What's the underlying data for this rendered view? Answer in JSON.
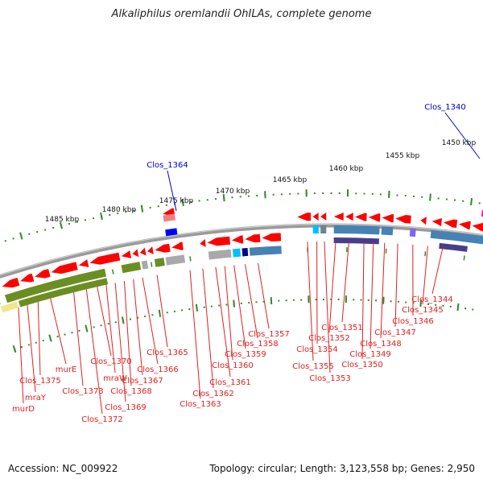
{
  "title": "Alkaliphilus oremlandii OhILAs, complete genome",
  "footer": {
    "accession": "Accession: NC_009922",
    "stats": "Topology: circular; Length: 3,123,558 bp; Genes: 2,950"
  },
  "ruler": [
    {
      "label": "1485 kbp"
    },
    {
      "label": "1480 kbp"
    },
    {
      "label": "1475 kbp"
    },
    {
      "label": "1470 kbp"
    },
    {
      "label": "1465 kbp"
    },
    {
      "label": "1460 kbp"
    },
    {
      "label": "1455 kbp"
    },
    {
      "label": "1450 kbp"
    }
  ],
  "highlighted_genes": [
    {
      "label": "Clos_1364"
    },
    {
      "label": "Clos_1340"
    }
  ],
  "gene_labels": [
    {
      "label": "murD"
    },
    {
      "label": "mraY"
    },
    {
      "label": "Clos_1375"
    },
    {
      "label": "murE"
    },
    {
      "label": "Clos_1373"
    },
    {
      "label": "Clos_1372"
    },
    {
      "label": "Clos_1370"
    },
    {
      "label": "mraW"
    },
    {
      "label": "Clos_1369"
    },
    {
      "label": "Clos_1368"
    },
    {
      "label": "Clos_1367"
    },
    {
      "label": "Clos_1366"
    },
    {
      "label": "Clos_1365"
    },
    {
      "label": "Clos_1363"
    },
    {
      "label": "Clos_1362"
    },
    {
      "label": "Clos_1361"
    },
    {
      "label": "Clos_1360"
    },
    {
      "label": "Clos_1359"
    },
    {
      "label": "Clos_1358"
    },
    {
      "label": "Clos_1357"
    },
    {
      "label": "Clos_1355"
    },
    {
      "label": "Clos_1354"
    },
    {
      "label": "Clos_1353"
    },
    {
      "label": "Clos_1352"
    },
    {
      "label": "Clos_1351"
    },
    {
      "label": "Clos_1350"
    },
    {
      "label": "Clos_1349"
    },
    {
      "label": "Clos_1348"
    },
    {
      "label": "Clos_1347"
    },
    {
      "label": "Clos_1346"
    },
    {
      "label": "Clos_1345"
    },
    {
      "label": "Clos_1344"
    }
  ],
  "colors": {
    "gene_arrow": "#ff0000",
    "label_line": "#e02020",
    "highlight_label": "#0000cc",
    "backbone": "#888888",
    "tick": "#2e8b2e",
    "cog_olive": "#6b8e23",
    "cog_blue": "#4682b4",
    "cog_navy": "#483d8b",
    "cog_gray": "#a9a9a9",
    "cog_pale": "#f0e68c",
    "cog_cyan": "#00bfff",
    "cog_pink": "#f08080",
    "cog_royal": "#0000ff"
  }
}
